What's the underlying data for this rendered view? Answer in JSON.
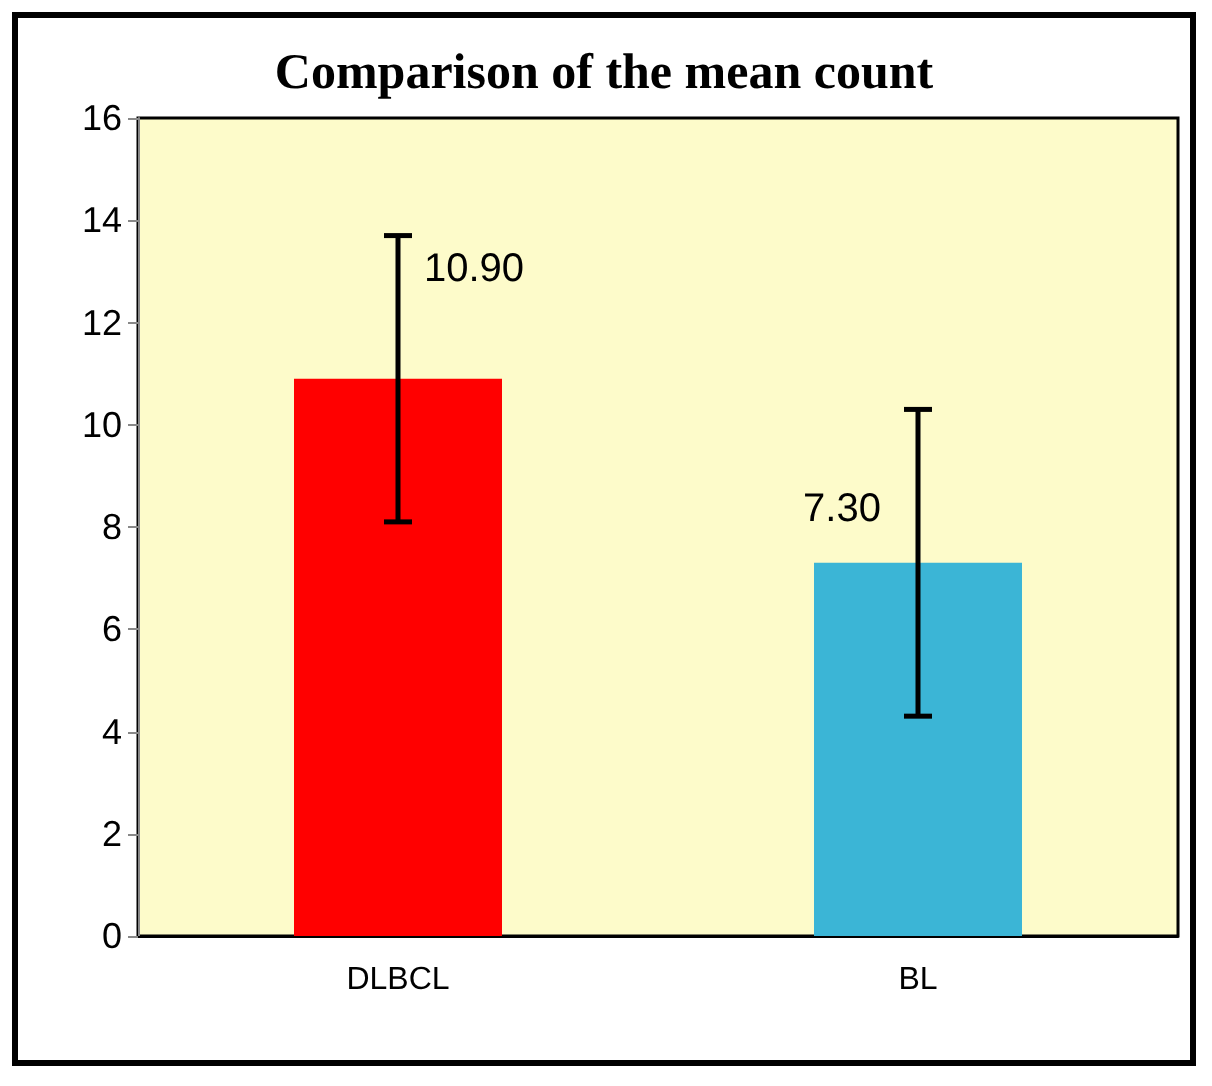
{
  "chart_data": {
    "type": "bar",
    "title": "Comparison of the mean count",
    "categories": [
      "DLBCL",
      "BL"
    ],
    "values": [
      10.9,
      7.3
    ],
    "colors": [
      "#ff0000",
      "#3bb5d6"
    ],
    "errors": [
      [
        8.1,
        13.7
      ],
      [
        4.3,
        10.3
      ]
    ],
    "value_labels": [
      "10.90",
      "7.30"
    ],
    "ylim": [
      0,
      16
    ],
    "yticks": [
      0,
      2,
      4,
      6,
      8,
      10,
      12,
      14,
      16
    ],
    "grid": false
  }
}
